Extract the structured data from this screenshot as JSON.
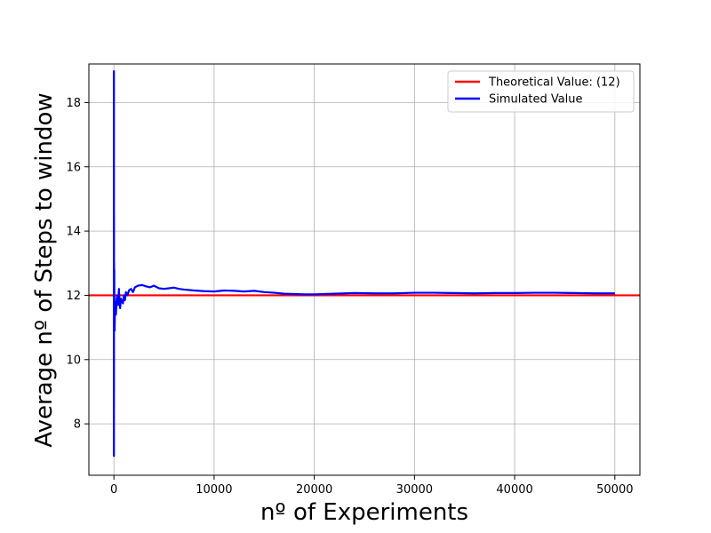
{
  "chart_data": {
    "type": "line",
    "title": "",
    "xlabel": "nº of Experiments",
    "ylabel": "Average nº of Steps to window",
    "xlim": [
      -2500,
      52500
    ],
    "ylim": [
      6.4,
      19.2
    ],
    "xticks": [
      0,
      10000,
      20000,
      30000,
      40000,
      50000
    ],
    "xtick_labels": [
      "0",
      "10000",
      "20000",
      "30000",
      "40000",
      "50000"
    ],
    "yticks": [
      8,
      10,
      12,
      14,
      16,
      18
    ],
    "ytick_labels": [
      "8",
      "10",
      "12",
      "14",
      "16",
      "18"
    ],
    "grid": true,
    "legend_position": "top-right",
    "series": [
      {
        "name": "Theoretical Value: (12)",
        "color": "#ff0000",
        "kind": "hline",
        "y": 12
      },
      {
        "name": "Simulated Value",
        "color": "#0000ff",
        "kind": "line",
        "x": [
          1,
          2,
          3,
          5,
          8,
          12,
          18,
          25,
          35,
          50,
          70,
          100,
          140,
          200,
          280,
          350,
          420,
          500,
          560,
          620,
          700,
          800,
          900,
          1000,
          1100,
          1200,
          1350,
          1500,
          1700,
          1900,
          2100,
          2400,
          2800,
          3200,
          3600,
          4000,
          4500,
          5000,
          5500,
          6000,
          6500,
          7000,
          8000,
          9000,
          10000,
          11000,
          12000,
          13000,
          14000,
          15000,
          16000,
          17000,
          18000,
          19000,
          20000,
          22000,
          24000,
          26000,
          28000,
          30000,
          32000,
          34000,
          36000,
          38000,
          40000,
          42000,
          44000,
          46000,
          48000,
          50000
        ],
        "y": [
          19.0,
          7.0,
          18.5,
          8.5,
          14.5,
          11.0,
          13.0,
          11.5,
          12.8,
          11.2,
          10.9,
          11.5,
          11.8,
          11.4,
          11.9,
          12.0,
          11.7,
          12.2,
          11.8,
          11.6,
          11.9,
          11.8,
          11.75,
          12.0,
          11.85,
          12.1,
          12.0,
          12.15,
          12.2,
          12.1,
          12.25,
          12.3,
          12.32,
          12.28,
          12.25,
          12.3,
          12.22,
          12.2,
          12.22,
          12.24,
          12.2,
          12.18,
          12.15,
          12.13,
          12.12,
          12.15,
          12.14,
          12.12,
          12.14,
          12.1,
          12.08,
          12.05,
          12.04,
          12.03,
          12.03,
          12.05,
          12.07,
          12.06,
          12.06,
          12.08,
          12.08,
          12.07,
          12.06,
          12.07,
          12.07,
          12.08,
          12.08,
          12.07,
          12.06,
          12.06
        ]
      }
    ]
  }
}
